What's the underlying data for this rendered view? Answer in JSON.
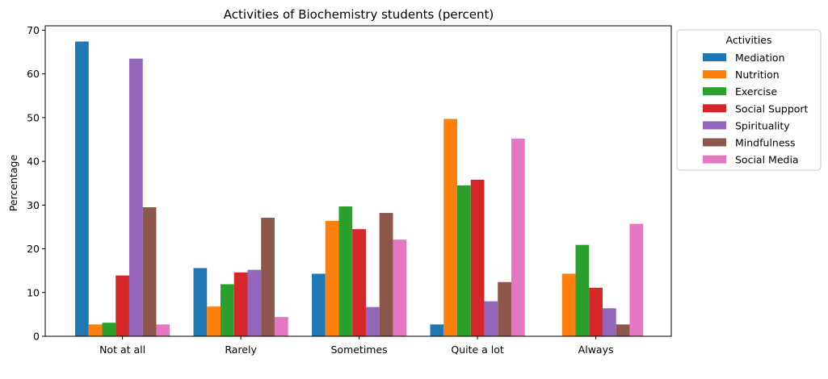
{
  "chart_data": {
    "type": "bar",
    "title": "Activities of Biochemistry students (percent)",
    "xlabel": "",
    "ylabel": "Percentage",
    "ylim": [
      0,
      71
    ],
    "yticks": [
      0,
      10,
      20,
      30,
      40,
      50,
      60,
      70
    ],
    "categories": [
      "Not at all",
      "Rarely",
      "Sometimes",
      "Quite a lot",
      "Always"
    ],
    "legend": {
      "title": "Activities",
      "placement": "outside-top-right"
    },
    "grid": false,
    "series": [
      {
        "name": "Mediation",
        "color": "#1f77b4",
        "values": [
          67.4,
          15.6,
          14.3,
          2.7,
          0
        ]
      },
      {
        "name": "Nutrition",
        "color": "#ff7f0e",
        "values": [
          2.7,
          6.8,
          26.4,
          49.7,
          14.3
        ]
      },
      {
        "name": "Exercise",
        "color": "#2ca02c",
        "values": [
          3.1,
          11.9,
          29.7,
          34.5,
          20.9
        ]
      },
      {
        "name": "Social Support",
        "color": "#d62728",
        "values": [
          13.9,
          14.6,
          24.5,
          35.8,
          11.1
        ]
      },
      {
        "name": "Spirituality",
        "color": "#9467bd",
        "values": [
          63.5,
          15.2,
          6.7,
          8.0,
          6.4
        ]
      },
      {
        "name": "Mindfulness",
        "color": "#8c564b",
        "values": [
          29.5,
          27.1,
          28.2,
          12.4,
          2.7
        ]
      },
      {
        "name": "Social Media",
        "color": "#e377c2",
        "values": [
          2.7,
          4.4,
          22.1,
          45.2,
          25.7
        ]
      }
    ]
  }
}
